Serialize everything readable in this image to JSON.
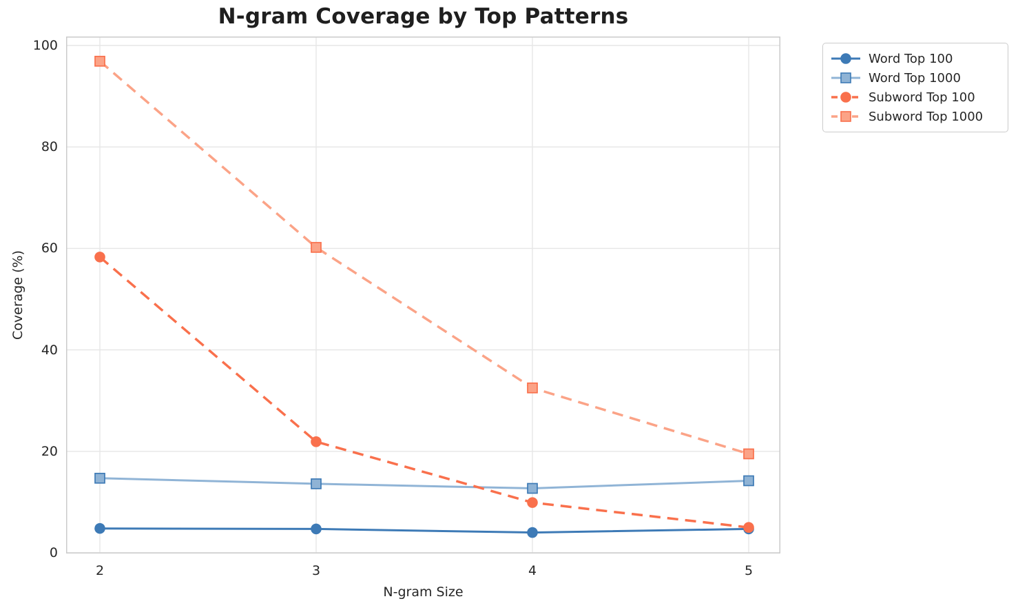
{
  "chart_data": {
    "type": "line",
    "title": "N-gram Coverage by Top Patterns",
    "xlabel": "N-gram Size",
    "ylabel": "Coverage (%)",
    "x": [
      2,
      3,
      4,
      5
    ],
    "xticks": [
      "2",
      "3",
      "4",
      "5"
    ],
    "yticks": [
      0,
      20,
      40,
      60,
      80,
      100
    ],
    "xlim": [
      1.84,
      5.15
    ],
    "ylim": [
      -0.1,
      101.8
    ],
    "grid": true,
    "grid_color": "#e6e6e6",
    "spine_color": "#cbcbcb",
    "legend_position": "outside-top-right",
    "series": [
      {
        "name": "Word Top 100",
        "values": [
          4.8,
          4.7,
          4.0,
          4.7
        ],
        "color": "#3d7ab6",
        "line_style": "solid",
        "marker": "circle",
        "marker_fill": "#3d7ab6",
        "marker_edge": "#3d7ab6"
      },
      {
        "name": "Word Top 1000",
        "values": [
          14.7,
          13.6,
          12.7,
          14.2
        ],
        "color": "#90b4d6",
        "line_style": "solid",
        "marker": "square",
        "marker_fill": "#8fb3d5",
        "marker_edge": "#3d7ab6"
      },
      {
        "name": "Subword Top 100",
        "values": [
          58.3,
          21.9,
          9.9,
          5.0
        ],
        "color": "#f9704c",
        "line_style": "dashed",
        "marker": "circle",
        "marker_fill": "#f9704c",
        "marker_edge": "#f9704c"
      },
      {
        "name": "Subword Top 1000",
        "values": [
          96.9,
          60.2,
          32.5,
          19.5
        ],
        "color": "#fba387",
        "line_style": "dashed",
        "marker": "square",
        "marker_fill": "#fba387",
        "marker_edge": "#f9704c"
      }
    ]
  }
}
